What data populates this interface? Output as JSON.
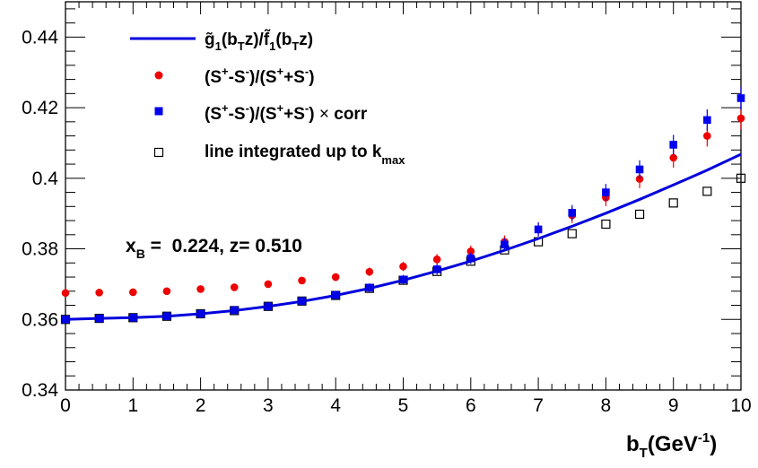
{
  "chart_data": {
    "type": "scatter",
    "title": "",
    "annotation": "x_B = 0.224, z= 0.510",
    "annotation_parts": {
      "var": "x",
      "sub": "B",
      "rest": " =  0.224, z= 0.510"
    },
    "xlabel": "b_T(GeV^-1)",
    "xlabel_parts": {
      "b": "b",
      "sub": "T",
      "mid": "(GeV",
      "sup": "-1",
      "end": ")"
    },
    "ylabel": "",
    "xlim": [
      0,
      10
    ],
    "ylim": [
      0.34,
      0.45
    ],
    "x_ticks": [
      0,
      1,
      2,
      3,
      4,
      5,
      6,
      7,
      8,
      9,
      10
    ],
    "x_tick_labels": [
      "0",
      "1",
      "2",
      "3",
      "4",
      "5",
      "6",
      "7",
      "8",
      "9",
      "10"
    ],
    "y_ticks": [
      0.34,
      0.36,
      0.38,
      0.4,
      0.42,
      0.44
    ],
    "y_tick_labels": [
      "0.34",
      "0.36",
      "0.38",
      "0.4",
      "0.42",
      "0.44"
    ],
    "grid": false,
    "legend_position": "top-left",
    "x": [
      0,
      0.5,
      1,
      1.5,
      2,
      2.5,
      3,
      3.5,
      4,
      4.5,
      5,
      5.5,
      6,
      6.5,
      7,
      7.5,
      8,
      8.5,
      9,
      9.5,
      10
    ],
    "series": [
      {
        "name": "g̃1(bTz)/f̃1(bTz)",
        "legend_parts": {
          "main": "g̃",
          "sub1": "1",
          "mid1": "(b",
          "sub2": "T",
          "mid2": "z)/",
          "main2": "f̃",
          "sub3": "1",
          "mid3": "(b",
          "sub4": "T",
          "end": "z)"
        },
        "kind": "line",
        "color": "#0000dd",
        "x": [
          0,
          0.5,
          1,
          1.5,
          2,
          2.5,
          3,
          3.5,
          4,
          4.5,
          5,
          5.5,
          6,
          6.5,
          7,
          7.5,
          8,
          8.5,
          9,
          9.5,
          10
        ],
        "values": [
          0.36,
          0.3603,
          0.3605,
          0.3609,
          0.3616,
          0.3625,
          0.3637,
          0.3651,
          0.3668,
          0.3688,
          0.3711,
          0.3737,
          0.3765,
          0.3796,
          0.3829,
          0.3864,
          0.3901,
          0.394,
          0.3981,
          0.4023,
          0.4068
        ]
      },
      {
        "name": "(S+-S-)/(S++S-)",
        "legend_parts": {
          "a": "(S",
          "sa": "+",
          "b": "-S",
          "sb": "-",
          "c": ")/(S",
          "sc": "+",
          "d": "+S",
          "sd": "-",
          "e": ")"
        },
        "kind": "circle",
        "color": "#ee0000",
        "values": [
          0.3675,
          0.3676,
          0.3677,
          0.368,
          0.3686,
          0.3691,
          0.37,
          0.371,
          0.372,
          0.3735,
          0.375,
          0.377,
          0.3793,
          0.382,
          0.3855,
          0.3895,
          0.3945,
          0.3998,
          0.4058,
          0.412,
          0.417
        ],
        "errors": [
          0.0006,
          0.0006,
          0.0006,
          0.0006,
          0.0007,
          0.0008,
          0.0009,
          0.001,
          0.0011,
          0.0012,
          0.0013,
          0.0015,
          0.0016,
          0.0018,
          0.002,
          0.0022,
          0.0024,
          0.0026,
          0.0028,
          0.003,
          0.0032
        ]
      },
      {
        "name": "(S+-S-)/(S++S-) × corr",
        "legend_parts": {
          "a": "(S",
          "sa": "+",
          "b": "-S",
          "sb": "-",
          "c": ")/(S",
          "sc": "+",
          "d": "+S",
          "sd": "-",
          "e": ") ",
          "times": "×",
          "f": " corr"
        },
        "kind": "square",
        "color": "#0000ee",
        "values": [
          0.36,
          0.3603,
          0.3605,
          0.3609,
          0.3616,
          0.3626,
          0.3637,
          0.3652,
          0.3669,
          0.369,
          0.3713,
          0.3742,
          0.3773,
          0.3812,
          0.3855,
          0.3902,
          0.396,
          0.4025,
          0.4095,
          0.4165,
          0.4227
        ],
        "errors": [
          0.0006,
          0.0006,
          0.0006,
          0.0006,
          0.0007,
          0.0008,
          0.0009,
          0.001,
          0.0011,
          0.0012,
          0.0013,
          0.0015,
          0.0016,
          0.0018,
          0.002,
          0.0022,
          0.0024,
          0.0026,
          0.0028,
          0.003,
          0.0032
        ]
      },
      {
        "name": "line integrated up to k_max",
        "legend_parts": {
          "main": "line integrated up to k",
          "sub": "max"
        },
        "kind": "open-square",
        "color": "#000000",
        "values": [
          0.36,
          0.3603,
          0.3605,
          0.3609,
          0.3616,
          0.3625,
          0.3637,
          0.3652,
          0.3668,
          0.3688,
          0.3711,
          0.3736,
          0.3765,
          0.3797,
          0.382,
          0.3843,
          0.387,
          0.3898,
          0.393,
          0.3963,
          0.4
        ]
      }
    ]
  }
}
